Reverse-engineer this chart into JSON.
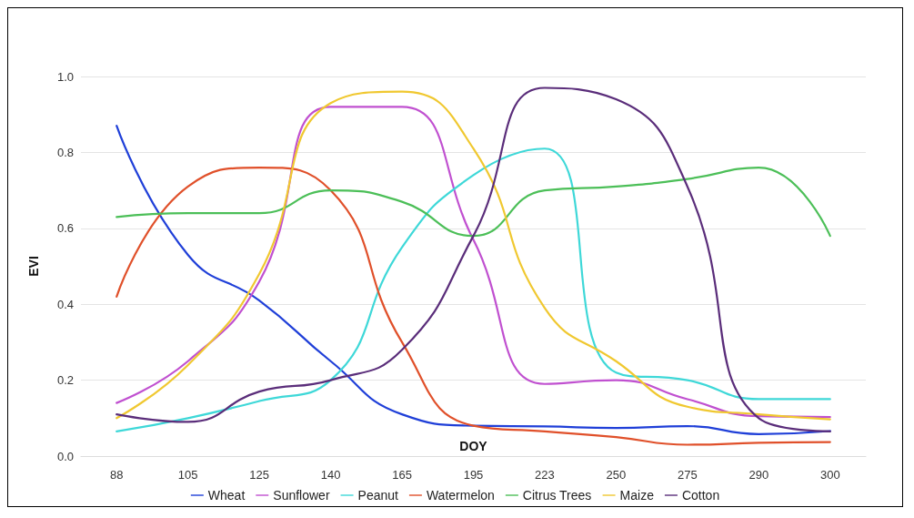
{
  "chart_data": {
    "type": "line",
    "xlabel": "DOY",
    "ylabel": "EVI",
    "categories": [
      "88",
      "105",
      "125",
      "140",
      "165",
      "195",
      "223",
      "250",
      "275",
      "290",
      "300"
    ],
    "ylim": [
      0,
      1
    ],
    "yticks": [
      {
        "value": 0,
        "label": "0.0"
      },
      {
        "value": 0.2,
        "label": "0.2"
      },
      {
        "value": 0.4,
        "label": "0.4"
      },
      {
        "value": 0.6,
        "label": "0.6"
      },
      {
        "value": 0.8,
        "label": "0.8"
      },
      {
        "value": 1,
        "label": "1.0"
      }
    ],
    "grid": "y",
    "legend": "bottom",
    "marker": "none",
    "line_style": "solid",
    "series": [
      {
        "name": "Wheat",
        "color": "#1f3fd8",
        "values": [
          0.87,
          0.53,
          0.41,
          0.25,
          0.11,
          0.08,
          0.078,
          0.074,
          0.079,
          0.058,
          0.066
        ]
      },
      {
        "name": "Sunflower",
        "color": "#c050d0",
        "values": [
          0.14,
          0.25,
          0.46,
          0.92,
          0.92,
          0.57,
          0.19,
          0.2,
          0.15,
          0.105,
          0.103
        ]
      },
      {
        "name": "Peanut",
        "color": "#3ed8d8",
        "values": [
          0.065,
          0.1,
          0.145,
          0.2,
          0.55,
          0.74,
          0.81,
          0.22,
          0.2,
          0.15,
          0.15
        ]
      },
      {
        "name": "Watermelon",
        "color": "#e0502a",
        "values": [
          0.42,
          0.71,
          0.76,
          0.7,
          0.3,
          0.08,
          0.065,
          0.05,
          0.03,
          0.035,
          0.037
        ]
      },
      {
        "name": "Citrus Trees",
        "color": "#4cbf58",
        "values": [
          0.63,
          0.64,
          0.64,
          0.7,
          0.67,
          0.58,
          0.7,
          0.71,
          0.73,
          0.76,
          0.58
        ]
      },
      {
        "name": "Maize",
        "color": "#f0c830",
        "values": [
          0.1,
          0.24,
          0.48,
          0.93,
          0.96,
          0.81,
          0.39,
          0.25,
          0.13,
          0.11,
          0.097
        ]
      },
      {
        "name": "Cotton",
        "color": "#5a2d7a",
        "values": [
          0.11,
          0.09,
          0.17,
          0.2,
          0.28,
          0.58,
          0.97,
          0.94,
          0.71,
          0.1,
          0.065
        ]
      }
    ]
  }
}
